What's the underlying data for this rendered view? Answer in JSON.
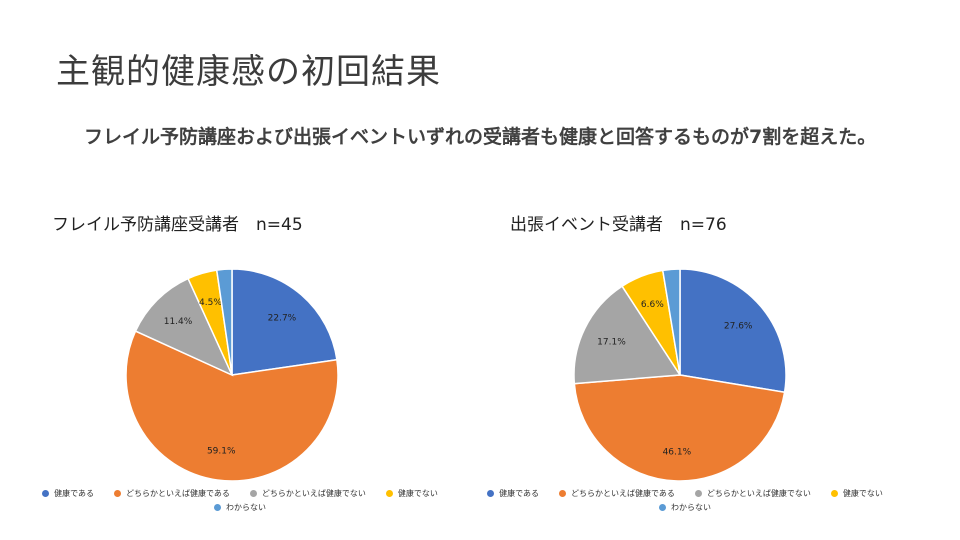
{
  "slide": {
    "title": "主観的健康感の初回結果",
    "summary": "フレイル予防講座および出張イベントいずれの受講者も健康と回答するものが7割を超えた。"
  },
  "colors": {
    "healthy": "#4472C4",
    "somewhat_healthy": "#ED7D31",
    "somewhat_unhealthy": "#A5A5A5",
    "unhealthy": "#FFC000",
    "unknown": "#5B9BD5"
  },
  "chart_data": [
    {
      "type": "pie",
      "title": "フレイル予防講座受講者　n=45",
      "labels": [
        "健康である",
        "どちらかといえば健康である",
        "どちらかといえば健康でない",
        "健康でない",
        "わからない"
      ],
      "values": [
        22.7,
        59.1,
        11.4,
        4.5,
        2.3
      ],
      "value_labels": [
        "22.7%",
        "59.1%",
        "11.4%",
        "4.5%",
        ""
      ],
      "legend_position": "bottom"
    },
    {
      "type": "pie",
      "title": "出張イベント受講者　n=76",
      "labels": [
        "健康である",
        "どちらかといえば健康である",
        "どちらかといえば健康でない",
        "健康でない",
        "わからない"
      ],
      "values": [
        27.6,
        46.1,
        17.1,
        6.6,
        2.6
      ],
      "value_labels": [
        "27.6%",
        "46.1%",
        "17.1%",
        "6.6%",
        ""
      ],
      "legend_position": "bottom"
    }
  ]
}
